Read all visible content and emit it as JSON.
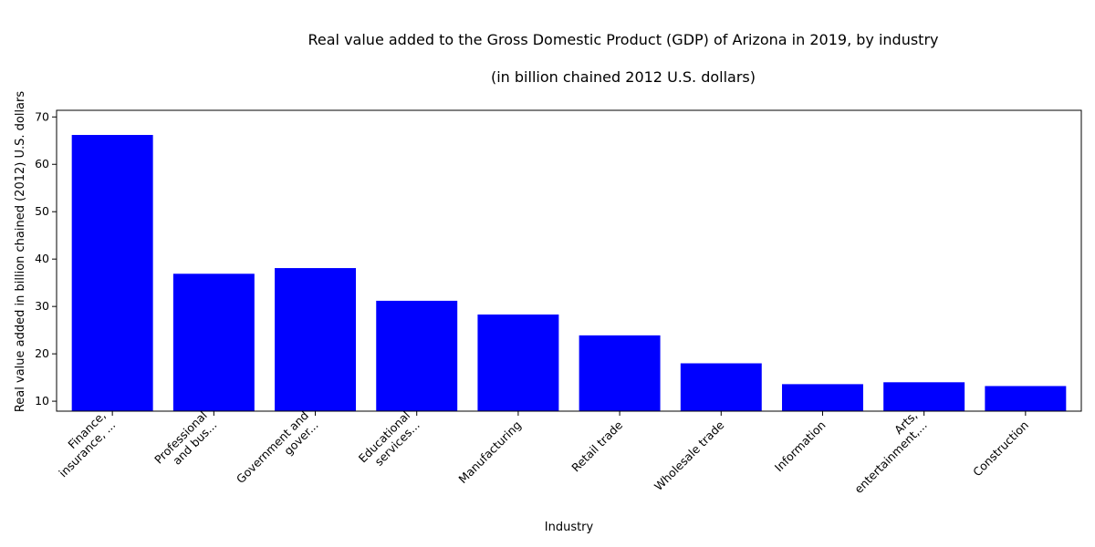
{
  "chart_data": {
    "type": "bar",
    "title_line1": "Real value added to the Gross Domestic Product (GDP) of Arizona in 2019, by industry",
    "title_line2": "(in billion chained 2012 U.S. dollars)",
    "xlabel": "Industry",
    "ylabel": "Real value added in billion chained (2012) U.S. dollars",
    "categories": [
      [
        "Finance,",
        "insurance, ..."
      ],
      [
        "Professional",
        "and bus..."
      ],
      [
        "Government and",
        "gover..."
      ],
      [
        "Educational",
        "services..."
      ],
      [
        "Manufacturing"
      ],
      [
        "Retail trade"
      ],
      [
        "Wholesale trade"
      ],
      [
        "Information"
      ],
      [
        "Arts,",
        "entertainment,..."
      ],
      [
        "Construction"
      ]
    ],
    "values": [
      66.2,
      36.9,
      38.1,
      31.2,
      28.3,
      23.9,
      18.0,
      13.6,
      14.0,
      13.2
    ],
    "ylim": [
      7.9,
      71.4
    ],
    "yticks": [
      10,
      20,
      30,
      40,
      50,
      60,
      70
    ],
    "bar_color": "#0000ff",
    "grid": false,
    "legend": "none"
  }
}
